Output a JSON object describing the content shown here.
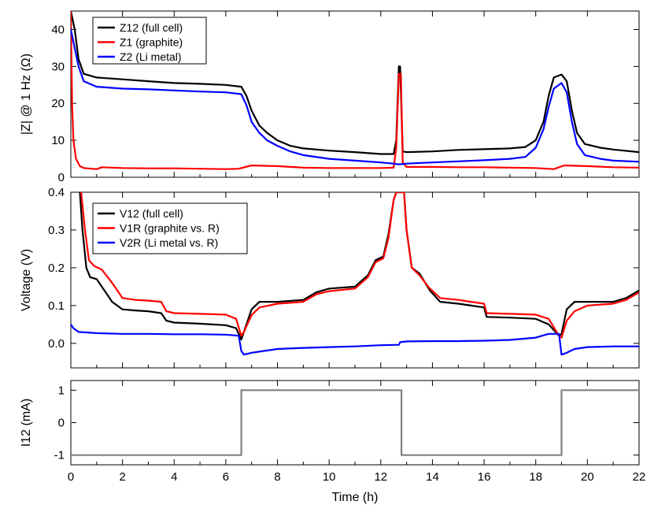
{
  "chart_data": [
    {
      "type": "line",
      "ylabel": "|Z| @ 1 Hz (Ω)",
      "xlim": [
        0,
        22
      ],
      "ylim": [
        0,
        45
      ],
      "yticks": [
        0,
        10,
        20,
        30,
        40
      ],
      "legend": "top-left",
      "grid": false,
      "series": [
        {
          "name": "Z12 (full cell)",
          "color": "#000000",
          "points": [
            [
              0,
              45
            ],
            [
              0.15,
              40
            ],
            [
              0.3,
              32
            ],
            [
              0.5,
              28
            ],
            [
              1,
              27
            ],
            [
              2,
              26.5
            ],
            [
              3,
              26
            ],
            [
              4,
              25.5
            ],
            [
              5,
              25.3
            ],
            [
              6,
              25
            ],
            [
              6.6,
              24.5
            ],
            [
              6.8,
              22
            ],
            [
              7,
              18
            ],
            [
              7.3,
              14
            ],
            [
              7.6,
              12
            ],
            [
              8,
              10
            ],
            [
              8.5,
              8.5
            ],
            [
              9,
              7.8
            ],
            [
              10,
              7.2
            ],
            [
              11,
              6.8
            ],
            [
              12,
              6.3
            ],
            [
              12.5,
              6.3
            ],
            [
              12.6,
              10
            ],
            [
              12.7,
              30
            ],
            [
              12.75,
              30
            ],
            [
              12.85,
              7
            ],
            [
              13,
              6.8
            ],
            [
              14,
              7
            ],
            [
              15,
              7.4
            ],
            [
              16,
              7.6
            ],
            [
              17,
              7.8
            ],
            [
              17.6,
              8.2
            ],
            [
              18,
              10
            ],
            [
              18.3,
              15
            ],
            [
              18.5,
              22
            ],
            [
              18.7,
              27
            ],
            [
              19,
              27.8
            ],
            [
              19.2,
              26
            ],
            [
              19.4,
              18
            ],
            [
              19.6,
              12
            ],
            [
              19.9,
              9
            ],
            [
              20.5,
              8
            ],
            [
              21,
              7.5
            ],
            [
              22,
              6.8
            ]
          ]
        },
        {
          "name": "Z1 (graphite)",
          "color": "#ff0000",
          "points": [
            [
              0,
              45
            ],
            [
              0.05,
              20
            ],
            [
              0.1,
              10
            ],
            [
              0.2,
              5
            ],
            [
              0.35,
              3
            ],
            [
              0.5,
              2.5
            ],
            [
              1,
              2.2
            ],
            [
              1.2,
              2.7
            ],
            [
              2,
              2.5
            ],
            [
              3,
              2.4
            ],
            [
              4,
              2.4
            ],
            [
              5,
              2.3
            ],
            [
              6,
              2.2
            ],
            [
              6.5,
              2.3
            ],
            [
              7,
              3.2
            ],
            [
              8,
              3
            ],
            [
              9,
              2.6
            ],
            [
              10,
              2.5
            ],
            [
              11,
              2.5
            ],
            [
              12,
              2.5
            ],
            [
              12.5,
              2.6
            ],
            [
              12.6,
              8
            ],
            [
              12.7,
              28
            ],
            [
              12.78,
              28
            ],
            [
              12.85,
              4
            ],
            [
              13,
              2.8
            ],
            [
              14,
              2.8
            ],
            [
              15,
              2.7
            ],
            [
              16,
              2.7
            ],
            [
              17,
              2.6
            ],
            [
              18,
              2.5
            ],
            [
              18.7,
              2.2
            ],
            [
              19.1,
              3.2
            ],
            [
              20,
              3
            ],
            [
              21,
              2.7
            ],
            [
              22,
              2.6
            ]
          ]
        },
        {
          "name": "Z2 (Li metal)",
          "color": "#0000ff",
          "points": [
            [
              0,
              40
            ],
            [
              0.15,
              35
            ],
            [
              0.3,
              30
            ],
            [
              0.5,
              26
            ],
            [
              1,
              24.5
            ],
            [
              2,
              24
            ],
            [
              3,
              23.8
            ],
            [
              4,
              23.5
            ],
            [
              5,
              23.2
            ],
            [
              6,
              23
            ],
            [
              6.6,
              22.5
            ],
            [
              6.8,
              19.5
            ],
            [
              7,
              15
            ],
            [
              7.3,
              12
            ],
            [
              7.6,
              10
            ],
            [
              8,
              8.5
            ],
            [
              8.5,
              7
            ],
            [
              9,
              6
            ],
            [
              10,
              5
            ],
            [
              11,
              4.5
            ],
            [
              12,
              4
            ],
            [
              12.5,
              3.7
            ],
            [
              12.7,
              3.5
            ],
            [
              12.9,
              3.6
            ],
            [
              13,
              3.7
            ],
            [
              14,
              4
            ],
            [
              15,
              4.3
            ],
            [
              16,
              4.6
            ],
            [
              17,
              5
            ],
            [
              17.6,
              5.5
            ],
            [
              18,
              8
            ],
            [
              18.3,
              13
            ],
            [
              18.5,
              19
            ],
            [
              18.7,
              24
            ],
            [
              19,
              25.5
            ],
            [
              19.2,
              23
            ],
            [
              19.4,
              15
            ],
            [
              19.6,
              9
            ],
            [
              19.9,
              6
            ],
            [
              20.5,
              5
            ],
            [
              21,
              4.5
            ],
            [
              22,
              4.2
            ]
          ]
        }
      ]
    },
    {
      "type": "line",
      "ylabel": "Voltage (V)",
      "xlim": [
        0,
        22
      ],
      "ylim": [
        -0.065,
        0.4
      ],
      "yticks": [
        0.0,
        0.1,
        0.2,
        0.3,
        0.4
      ],
      "yticklabels": [
        "0.0",
        "0.1",
        "0.2",
        "0.3",
        "0.4"
      ],
      "legend": "top-left",
      "grid": false,
      "series": [
        {
          "name": "V12 (full cell)",
          "color": "#000000",
          "points": [
            [
              0.35,
              0.4
            ],
            [
              0.45,
              0.3
            ],
            [
              0.6,
              0.2
            ],
            [
              0.75,
              0.175
            ],
            [
              1,
              0.17
            ],
            [
              1.3,
              0.14
            ],
            [
              1.6,
              0.11
            ],
            [
              2,
              0.09
            ],
            [
              2.5,
              0.087
            ],
            [
              3,
              0.085
            ],
            [
              3.5,
              0.08
            ],
            [
              3.7,
              0.06
            ],
            [
              4,
              0.055
            ],
            [
              5,
              0.052
            ],
            [
              6,
              0.048
            ],
            [
              6.4,
              0.04
            ],
            [
              6.6,
              0.01
            ],
            [
              6.7,
              0.03
            ],
            [
              7,
              0.09
            ],
            [
              7.3,
              0.11
            ],
            [
              8,
              0.11
            ],
            [
              9,
              0.115
            ],
            [
              9.5,
              0.135
            ],
            [
              10,
              0.145
            ],
            [
              11,
              0.15
            ],
            [
              11.5,
              0.18
            ],
            [
              11.8,
              0.22
            ],
            [
              12.1,
              0.23
            ],
            [
              12.3,
              0.29
            ],
            [
              12.5,
              0.38
            ],
            [
              12.6,
              0.4
            ],
            [
              12.9,
              0.4
            ],
            [
              13,
              0.3
            ],
            [
              13.2,
              0.2
            ],
            [
              13.5,
              0.185
            ],
            [
              13.9,
              0.14
            ],
            [
              14.3,
              0.11
            ],
            [
              15,
              0.105
            ],
            [
              15.5,
              0.1
            ],
            [
              16,
              0.095
            ],
            [
              16.1,
              0.07
            ],
            [
              17,
              0.068
            ],
            [
              18,
              0.065
            ],
            [
              18.5,
              0.05
            ],
            [
              18.9,
              0.02
            ],
            [
              19,
              0.025
            ],
            [
              19.2,
              0.09
            ],
            [
              19.5,
              0.11
            ],
            [
              20,
              0.11
            ],
            [
              21,
              0.11
            ],
            [
              21.5,
              0.12
            ],
            [
              22,
              0.14
            ]
          ]
        },
        {
          "name": "V1R (graphite vs. R)",
          "color": "#ff0000",
          "points": [
            [
              0.4,
              0.4
            ],
            [
              0.55,
              0.3
            ],
            [
              0.7,
              0.22
            ],
            [
              0.9,
              0.205
            ],
            [
              1.2,
              0.195
            ],
            [
              1.6,
              0.16
            ],
            [
              2,
              0.12
            ],
            [
              2.5,
              0.115
            ],
            [
              3,
              0.113
            ],
            [
              3.5,
              0.11
            ],
            [
              3.7,
              0.085
            ],
            [
              4,
              0.08
            ],
            [
              5,
              0.078
            ],
            [
              6,
              0.076
            ],
            [
              6.4,
              0.065
            ],
            [
              6.6,
              0.02
            ],
            [
              6.7,
              0.03
            ],
            [
              7,
              0.075
            ],
            [
              7.3,
              0.095
            ],
            [
              8,
              0.105
            ],
            [
              9,
              0.11
            ],
            [
              9.5,
              0.13
            ],
            [
              10,
              0.138
            ],
            [
              11,
              0.145
            ],
            [
              11.5,
              0.175
            ],
            [
              11.8,
              0.215
            ],
            [
              12.1,
              0.225
            ],
            [
              12.3,
              0.28
            ],
            [
              12.5,
              0.38
            ],
            [
              12.6,
              0.4
            ],
            [
              12.9,
              0.4
            ],
            [
              13,
              0.3
            ],
            [
              13.2,
              0.2
            ],
            [
              13.5,
              0.18
            ],
            [
              13.9,
              0.145
            ],
            [
              14.3,
              0.12
            ],
            [
              15,
              0.115
            ],
            [
              15.5,
              0.11
            ],
            [
              16,
              0.105
            ],
            [
              16.1,
              0.08
            ],
            [
              17,
              0.078
            ],
            [
              18,
              0.076
            ],
            [
              18.5,
              0.065
            ],
            [
              18.9,
              0.02
            ],
            [
              19,
              0.015
            ],
            [
              19.2,
              0.06
            ],
            [
              19.5,
              0.085
            ],
            [
              20,
              0.1
            ],
            [
              21,
              0.105
            ],
            [
              21.5,
              0.115
            ],
            [
              22,
              0.135
            ]
          ]
        },
        {
          "name": "V2R (Li metal vs. R)",
          "color": "#0000ff",
          "points": [
            [
              0,
              0.05
            ],
            [
              0.1,
              0.04
            ],
            [
              0.3,
              0.03
            ],
            [
              1,
              0.027
            ],
            [
              2,
              0.025
            ],
            [
              3,
              0.025
            ],
            [
              4,
              0.024
            ],
            [
              5,
              0.024
            ],
            [
              6,
              0.023
            ],
            [
              6.5,
              0.02
            ],
            [
              6.6,
              -0.02
            ],
            [
              6.7,
              -0.03
            ],
            [
              7,
              -0.025
            ],
            [
              7.5,
              -0.02
            ],
            [
              8,
              -0.015
            ],
            [
              9,
              -0.012
            ],
            [
              10,
              -0.01
            ],
            [
              11,
              -0.008
            ],
            [
              12,
              -0.005
            ],
            [
              12.7,
              -0.004
            ],
            [
              12.75,
              0.003
            ],
            [
              13,
              0.005
            ],
            [
              14,
              0.006
            ],
            [
              15,
              0.006
            ],
            [
              16,
              0.007
            ],
            [
              17,
              0.009
            ],
            [
              18,
              0.015
            ],
            [
              18.5,
              0.025
            ],
            [
              18.9,
              0.025
            ],
            [
              19,
              -0.03
            ],
            [
              19.2,
              -0.025
            ],
            [
              19.5,
              -0.015
            ],
            [
              20,
              -0.01
            ],
            [
              21,
              -0.008
            ],
            [
              22,
              -0.008
            ]
          ]
        }
      ]
    },
    {
      "type": "line",
      "ylabel": "I12 (mA)",
      "xlabel": "Time (h)",
      "xlim": [
        0,
        22
      ],
      "ylim": [
        -1.3,
        1.3
      ],
      "yticks": [
        -1,
        0,
        1
      ],
      "xticks": [
        0,
        2,
        4,
        6,
        8,
        10,
        12,
        14,
        16,
        18,
        20,
        22
      ],
      "legend": "none",
      "grid": false,
      "series": [
        {
          "color": "#808080",
          "points": [
            [
              0,
              0
            ],
            [
              0,
              -1
            ],
            [
              6.6,
              -1
            ],
            [
              6.6,
              1
            ],
            [
              12.8,
              1
            ],
            [
              12.8,
              -1
            ],
            [
              19,
              -1
            ],
            [
              19,
              1
            ],
            [
              22,
              1
            ]
          ]
        }
      ]
    }
  ]
}
